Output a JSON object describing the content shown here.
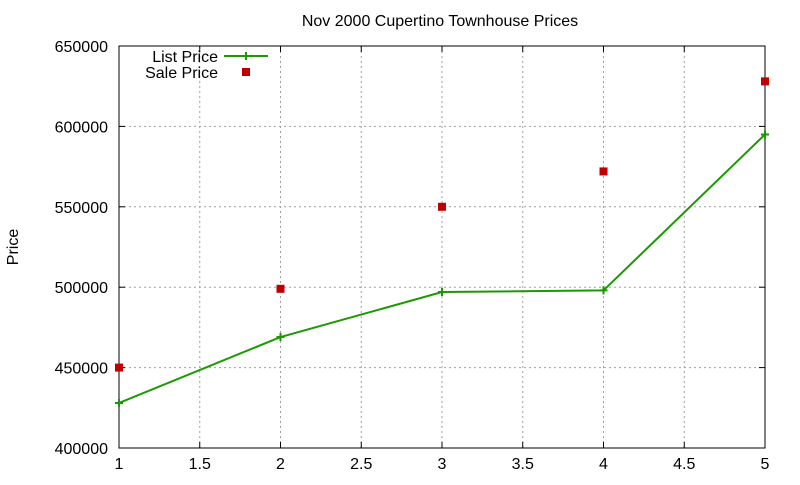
{
  "chart_data": {
    "type": "line",
    "title": "Nov 2000 Cupertino Townhouse Prices",
    "xlabel": "",
    "ylabel": "Price",
    "xlim": [
      1,
      5
    ],
    "ylim": [
      400000,
      650000
    ],
    "x_ticks": [
      1,
      1.5,
      2,
      2.5,
      3,
      3.5,
      4,
      4.5,
      5
    ],
    "y_ticks": [
      400000,
      450000,
      500000,
      550000,
      600000,
      650000
    ],
    "x_tick_labels": [
      "1",
      "1.5",
      "2",
      "2.5",
      "3",
      "3.5",
      "4",
      "4.5",
      "5"
    ],
    "y_tick_labels": [
      "400000",
      "450000",
      "500000",
      "550000",
      "600000",
      "650000"
    ],
    "grid": true,
    "legend_position": "top-left",
    "series": [
      {
        "name": "List Price",
        "style": "line-with-plus-markers",
        "color": "#1a9a00",
        "x": [
          1,
          2,
          3,
          4,
          5
        ],
        "values": [
          428000,
          469000,
          497000,
          498000,
          595000
        ]
      },
      {
        "name": "Sale Price",
        "style": "square-points",
        "color": "#c00000",
        "x": [
          1,
          2,
          3,
          4,
          5
        ],
        "values": [
          450000,
          499000,
          550000,
          572000,
          628000
        ]
      }
    ]
  }
}
